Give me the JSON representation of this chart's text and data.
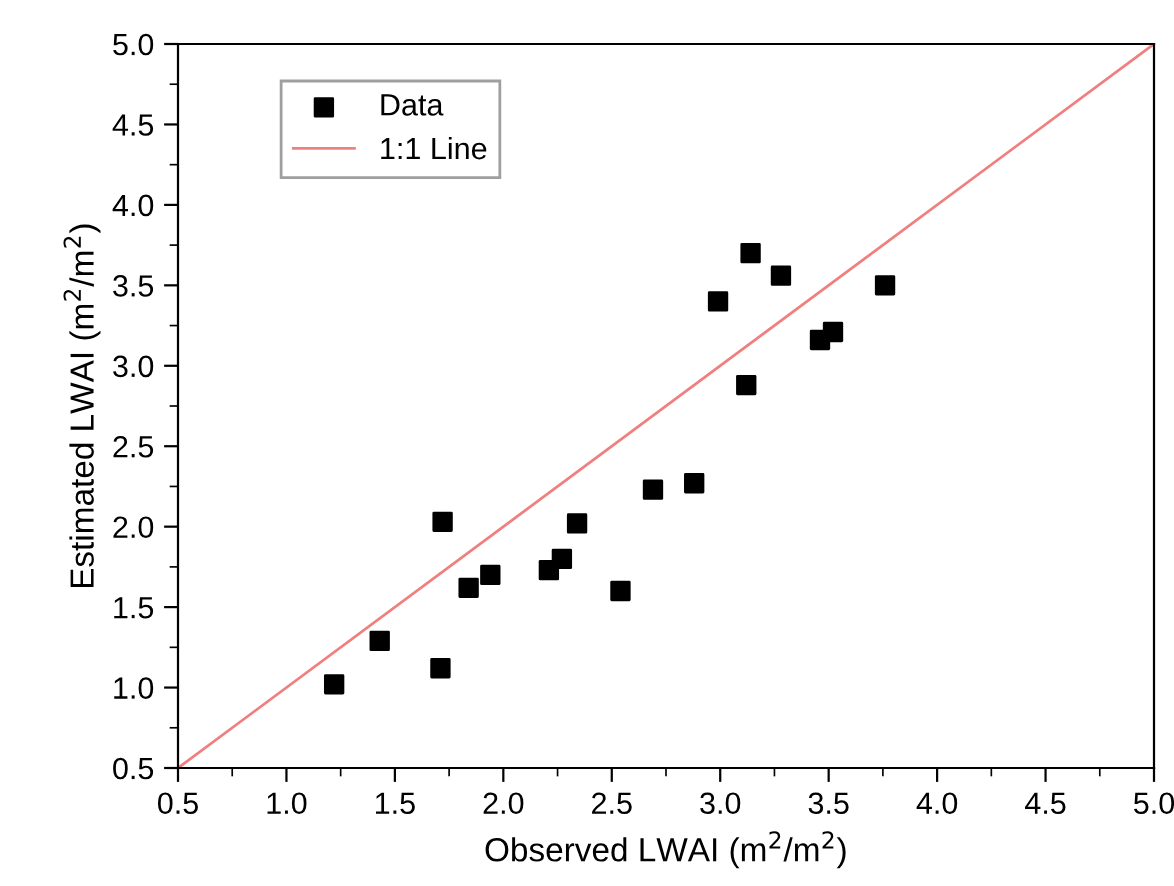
{
  "chart_data": {
    "type": "scatter",
    "xlabel": "Observed LWAI (m$^{2}$/m$^{2}$)",
    "ylabel": "Estimated LWAI (m$^{2}$/m$^{2}$)",
    "xlim": [
      0.5,
      5.0
    ],
    "ylim": [
      0.5,
      5.0
    ],
    "xticks": [
      {
        "value": 0.5,
        "label": "0.5"
      },
      {
        "value": 1.0,
        "label": "1.0"
      },
      {
        "value": 1.5,
        "label": "1.5"
      },
      {
        "value": 2.0,
        "label": "2.0"
      },
      {
        "value": 2.5,
        "label": "2.5"
      },
      {
        "value": 3.0,
        "label": "3.0"
      },
      {
        "value": 3.5,
        "label": "3.5"
      },
      {
        "value": 4.0,
        "label": "4.0"
      },
      {
        "value": 4.5,
        "label": "4.5"
      },
      {
        "value": 5.0,
        "label": "5.0"
      }
    ],
    "yticks": [
      {
        "value": 0.5,
        "label": "0.5"
      },
      {
        "value": 1.0,
        "label": "1.0"
      },
      {
        "value": 1.5,
        "label": "1.5"
      },
      {
        "value": 2.0,
        "label": "2.0"
      },
      {
        "value": 2.5,
        "label": "2.5"
      },
      {
        "value": 3.0,
        "label": "3.0"
      },
      {
        "value": 3.5,
        "label": "3.5"
      },
      {
        "value": 4.0,
        "label": "4.0"
      },
      {
        "value": 4.5,
        "label": "4.5"
      },
      {
        "value": 5.0,
        "label": "5.0"
      }
    ],
    "legend": "top left",
    "series": [
      {
        "name": "Data",
        "marker": "square",
        "color": "#000000",
        "x": [
          1.22,
          1.43,
          1.71,
          1.72,
          1.84,
          1.94,
          2.21,
          2.27,
          2.34,
          2.54,
          2.69,
          2.88,
          2.99,
          3.12,
          3.14,
          3.28,
          3.46,
          3.52,
          3.76
        ],
        "values": [
          1.02,
          1.29,
          1.12,
          2.03,
          1.62,
          1.7,
          1.73,
          1.8,
          2.02,
          1.6,
          2.23,
          2.27,
          3.4,
          2.88,
          3.7,
          3.56,
          3.16,
          3.21,
          3.5
        ]
      },
      {
        "name": "1:1 Line",
        "type": "line",
        "marker": "none",
        "color": "#f08080",
        "x": [
          0.5,
          5.0
        ],
        "values": [
          0.5,
          5.0
        ]
      }
    ]
  }
}
